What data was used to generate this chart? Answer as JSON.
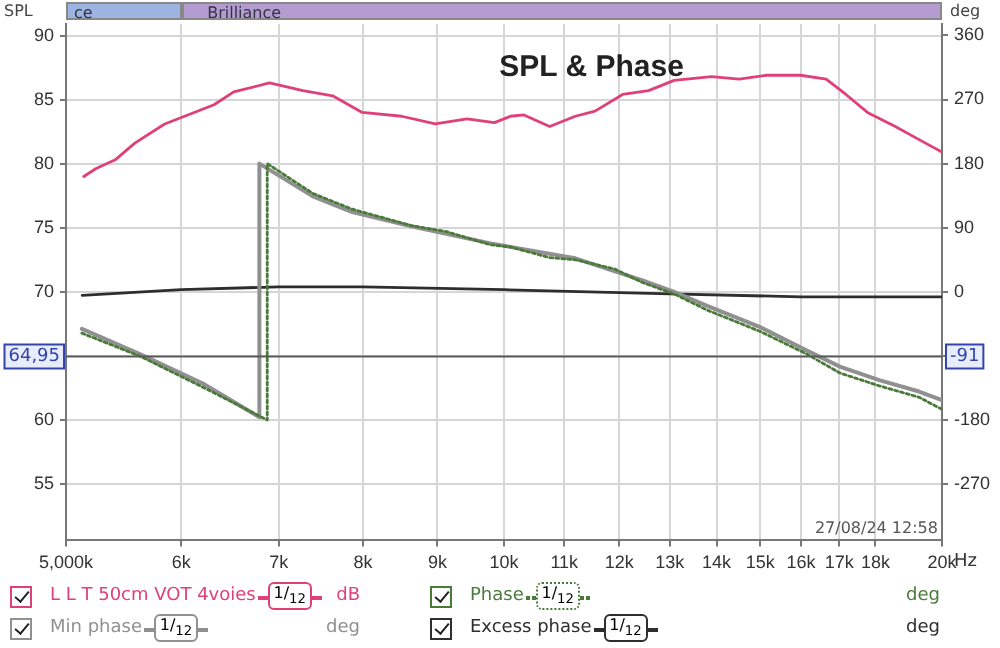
{
  "chart_data": {
    "type": "line",
    "title": "SPL & Phase",
    "ylabel": "SPL",
    "y2label": "deg",
    "log": "x",
    "marker": "none",
    "grid": true,
    "legend": "bottom",
    "xlim": [
      5000,
      20000
    ],
    "xticks": [
      {
        "value": 5000,
        "label": "5,000k"
      },
      {
        "value": 6000,
        "label": "6k"
      },
      {
        "value": 7000,
        "label": "7k"
      },
      {
        "value": 8000,
        "label": "8k"
      },
      {
        "value": 9000,
        "label": "9k"
      },
      {
        "value": 10000,
        "label": "10k"
      },
      {
        "value": 11000,
        "label": "11k"
      },
      {
        "value": 12000,
        "label": "12k"
      },
      {
        "value": 13000,
        "label": "13k"
      },
      {
        "value": 14000,
        "label": "14k"
      },
      {
        "value": 15000,
        "label": "15k"
      },
      {
        "value": 16000,
        "label": "16k"
      },
      {
        "value": 17000,
        "label": "17k"
      },
      {
        "value": 18000,
        "label": "18k"
      },
      {
        "value": 20000,
        "label": "20k"
      }
    ],
    "xlabel": "Hz",
    "ylim": [
      50.6,
      90.9
    ],
    "yticks": [
      55,
      60,
      {
        "value": 65,
        "label": null
      },
      70,
      75,
      80,
      85,
      90
    ],
    "y2lim": [
      -349,
      376
    ],
    "y2ticks": [
      -270,
      -180,
      {
        "value": -90,
        "label": null
      },
      0,
      90,
      180,
      270,
      360
    ],
    "ref_lines": [
      {
        "axis": "y",
        "value": 64.95,
        "label": "64,95",
        "color": "#5a5a5a"
      }
    ],
    "annotations": [
      "27/08/24 12:58",
      "-91",
      "ce",
      "Brilliance",
      "1/$_{12}$",
      "dB",
      "1/$_{12}$",
      "deg",
      "1/$_{12}$",
      "deg",
      "1/$_{12}$",
      "deg"
    ],
    "series": [
      {
        "name": "L L T 50cm VOT 4voies",
        "color": "#e0407a",
        "line_style": "solid",
        "x": [
          5143,
          5240,
          5405,
          5575,
          5845,
          6320,
          6520,
          6900,
          7275,
          7625,
          7990,
          8505,
          8970,
          9430,
          9850,
          10100,
          10320,
          10750,
          11195,
          11550,
          12065,
          12570,
          13090,
          13890,
          14510,
          15155,
          15985,
          16650,
          17180,
          17775,
          18575,
          19345,
          20000
        ],
        "values": [
          79.0,
          79.6,
          80.3,
          81.6,
          83.1,
          84.6,
          85.6,
          86.3,
          85.7,
          85.3,
          84.0,
          83.7,
          83.1,
          83.5,
          83.2,
          83.7,
          83.8,
          82.9,
          83.7,
          84.1,
          85.4,
          85.7,
          86.5,
          86.8,
          86.6,
          86.9,
          86.9,
          86.6,
          85.4,
          84.0,
          82.9,
          81.8,
          80.9
        ]
      },
      {
        "name": "Phase",
        "color": "#4a7a3a",
        "axis": "y2",
        "line_style": "dotted",
        "x": [
          5127,
          5630,
          6225,
          6875,
          6875,
          7390,
          7865,
          8635,
          9110,
          9790,
          10100,
          10750,
          11195,
          11915,
          12450,
          13090,
          13805,
          15015,
          16135,
          17015,
          18110,
          19285,
          20000
        ],
        "values": [
          -58,
          -91,
          -135,
          -180,
          180,
          138,
          116,
          93,
          85,
          66,
          63,
          48,
          45,
          32,
          13,
          -3,
          -26,
          -56,
          -87,
          -114,
          -132,
          -148,
          -165
        ]
      },
      {
        "name": "Min phase",
        "color": "#909090",
        "axis": "y2",
        "line_style": "solid",
        "x": [
          5127,
          5630,
          6225,
          6790,
          6790,
          7390,
          7865,
          8635,
          9790,
          11195,
          12450,
          13090,
          13805,
          15015,
          16135,
          17015,
          18110,
          19285,
          20000
        ],
        "values": [
          -52,
          -88,
          -130,
          -176,
          180,
          134,
          112,
          92,
          68,
          47,
          16,
          0,
          -20,
          -50,
          -82,
          -105,
          -124,
          -140,
          -152
        ]
      },
      {
        "name": "Excess phase",
        "color": "#2e2e2e",
        "axis": "y2",
        "line_style": "solid",
        "x": [
          5130,
          6000,
          7000,
          8000,
          10000,
          13000,
          16000,
          20000
        ],
        "values": [
          -5,
          3,
          7,
          7,
          3,
          -3,
          -7,
          -7
        ]
      }
    ]
  }
}
